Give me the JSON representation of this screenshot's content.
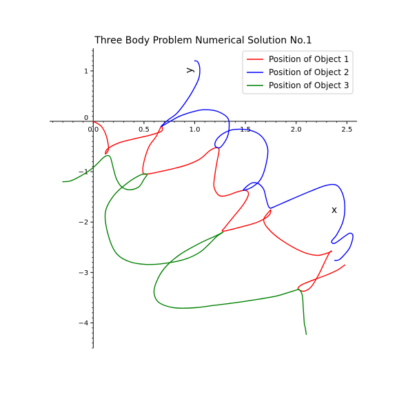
{
  "chart_data": {
    "type": "line",
    "title": "Three Body Problem Numerical Solution No.1",
    "xlabel": "x",
    "ylabel": "y",
    "xlim": [
      -0.43,
      2.6
    ],
    "ylim": [
      -4.5,
      1.45
    ],
    "x_ticks": [
      0.0,
      0.5,
      1.0,
      1.5,
      2.0,
      2.5
    ],
    "x_tick_labels": [
      "0.0",
      "0.5",
      "1.0",
      "1.5",
      "2.0",
      "2.5"
    ],
    "y_ticks": [
      1,
      0,
      -1,
      -2,
      -3,
      -4
    ],
    "y_tick_labels": [
      "1",
      "0",
      "−1",
      "−2",
      "−3",
      "−4"
    ],
    "grid": false,
    "legend_position": "upper right",
    "series": [
      {
        "name": "Position of Object 1",
        "color": "#ff0000",
        "points": [
          [
            0.0,
            0.0
          ],
          [
            0.08,
            -0.1
          ],
          [
            0.13,
            -0.3
          ],
          [
            0.15,
            -0.55
          ],
          [
            0.12,
            -0.65
          ],
          [
            0.14,
            -0.55
          ],
          [
            0.25,
            -0.43
          ],
          [
            0.4,
            -0.35
          ],
          [
            0.55,
            -0.28
          ],
          [
            0.67,
            -0.2
          ],
          [
            0.68,
            -0.12
          ],
          [
            0.67,
            -0.1
          ],
          [
            0.62,
            -0.3
          ],
          [
            0.55,
            -0.5
          ],
          [
            0.5,
            -0.8
          ],
          [
            0.49,
            -1.0
          ],
          [
            0.52,
            -1.05
          ],
          [
            0.7,
            -0.98
          ],
          [
            0.9,
            -0.88
          ],
          [
            1.05,
            -0.75
          ],
          [
            1.15,
            -0.58
          ],
          [
            1.22,
            -0.52
          ],
          [
            1.24,
            -0.58
          ],
          [
            1.22,
            -0.8
          ],
          [
            1.2,
            -1.05
          ],
          [
            1.19,
            -1.3
          ],
          [
            1.24,
            -1.47
          ],
          [
            1.32,
            -1.47
          ],
          [
            1.42,
            -1.4
          ],
          [
            1.5,
            -1.37
          ],
          [
            1.53,
            -1.45
          ],
          [
            1.48,
            -1.65
          ],
          [
            1.38,
            -1.9
          ],
          [
            1.3,
            -2.1
          ],
          [
            1.28,
            -2.18
          ],
          [
            1.45,
            -2.1
          ],
          [
            1.62,
            -2.0
          ],
          [
            1.73,
            -1.87
          ],
          [
            1.75,
            -1.76
          ],
          [
            1.73,
            -1.8
          ],
          [
            1.68,
            -1.95
          ],
          [
            1.72,
            -2.12
          ],
          [
            1.85,
            -2.35
          ],
          [
            2.05,
            -2.58
          ],
          [
            2.2,
            -2.66
          ],
          [
            2.3,
            -2.62
          ],
          [
            2.35,
            -2.58
          ],
          [
            2.33,
            -2.6
          ],
          [
            2.28,
            -2.8
          ],
          [
            2.22,
            -3.05
          ],
          [
            2.15,
            -3.28
          ],
          [
            2.08,
            -3.37
          ],
          [
            2.02,
            -3.33
          ],
          [
            2.05,
            -3.25
          ],
          [
            2.18,
            -3.14
          ],
          [
            2.3,
            -3.05
          ],
          [
            2.4,
            -2.96
          ],
          [
            2.46,
            -2.88
          ],
          [
            2.48,
            -2.85
          ]
        ]
      },
      {
        "name": "Position of Object 2",
        "color": "#0000ff",
        "points": [
          [
            1.0,
            1.2
          ],
          [
            1.03,
            1.18
          ],
          [
            1.05,
            1.05
          ],
          [
            1.04,
            0.85
          ],
          [
            0.98,
            0.6
          ],
          [
            0.9,
            0.35
          ],
          [
            0.82,
            0.15
          ],
          [
            0.74,
            0.03
          ],
          [
            0.67,
            -0.1
          ],
          [
            0.7,
            -0.07
          ],
          [
            0.85,
            0.1
          ],
          [
            1.0,
            0.2
          ],
          [
            1.1,
            0.23
          ],
          [
            1.22,
            0.2
          ],
          [
            1.32,
            0.08
          ],
          [
            1.34,
            -0.08
          ],
          [
            1.32,
            -0.32
          ],
          [
            1.25,
            -0.52
          ],
          [
            1.2,
            -0.48
          ],
          [
            1.22,
            -0.35
          ],
          [
            1.3,
            -0.22
          ],
          [
            1.4,
            -0.16
          ],
          [
            1.55,
            -0.18
          ],
          [
            1.66,
            -0.3
          ],
          [
            1.72,
            -0.55
          ],
          [
            1.7,
            -0.88
          ],
          [
            1.65,
            -1.15
          ],
          [
            1.57,
            -1.3
          ],
          [
            1.48,
            -1.37
          ],
          [
            1.52,
            -1.28
          ],
          [
            1.57,
            -1.22
          ],
          [
            1.63,
            -1.24
          ],
          [
            1.68,
            -1.35
          ],
          [
            1.7,
            -1.5
          ],
          [
            1.72,
            -1.65
          ],
          [
            1.74,
            -1.72
          ],
          [
            1.78,
            -1.7
          ],
          [
            1.95,
            -1.55
          ],
          [
            2.15,
            -1.38
          ],
          [
            2.3,
            -1.27
          ],
          [
            2.4,
            -1.27
          ],
          [
            2.46,
            -1.45
          ],
          [
            2.48,
            -1.72
          ],
          [
            2.46,
            -2.0
          ],
          [
            2.4,
            -2.25
          ],
          [
            2.35,
            -2.38
          ],
          [
            2.38,
            -2.42
          ],
          [
            2.48,
            -2.28
          ],
          [
            2.53,
            -2.22
          ],
          [
            2.56,
            -2.28
          ],
          [
            2.53,
            -2.5
          ],
          [
            2.47,
            -2.66
          ],
          [
            2.42,
            -2.75
          ],
          [
            2.38,
            -2.76
          ]
        ]
      },
      {
        "name": "Position of Object 3",
        "color": "#008000",
        "points": [
          [
            -0.3,
            -1.2
          ],
          [
            -0.22,
            -1.18
          ],
          [
            -0.12,
            -1.08
          ],
          [
            -0.02,
            -0.95
          ],
          [
            0.05,
            -0.82
          ],
          [
            0.1,
            -0.72
          ],
          [
            0.14,
            -0.68
          ],
          [
            0.17,
            -0.72
          ],
          [
            0.2,
            -0.95
          ],
          [
            0.23,
            -1.15
          ],
          [
            0.28,
            -1.3
          ],
          [
            0.36,
            -1.36
          ],
          [
            0.45,
            -1.3
          ],
          [
            0.5,
            -1.15
          ],
          [
            0.53,
            -1.05
          ],
          [
            0.46,
            -1.07
          ],
          [
            0.32,
            -1.25
          ],
          [
            0.2,
            -1.48
          ],
          [
            0.12,
            -1.8
          ],
          [
            0.14,
            -2.2
          ],
          [
            0.22,
            -2.6
          ],
          [
            0.35,
            -2.78
          ],
          [
            0.52,
            -2.84
          ],
          [
            0.7,
            -2.82
          ],
          [
            0.9,
            -2.74
          ],
          [
            1.05,
            -2.6
          ],
          [
            1.15,
            -2.42
          ],
          [
            1.22,
            -2.28
          ],
          [
            1.28,
            -2.2
          ],
          [
            1.2,
            -2.28
          ],
          [
            1.05,
            -2.42
          ],
          [
            0.85,
            -2.65
          ],
          [
            0.7,
            -2.92
          ],
          [
            0.62,
            -3.2
          ],
          [
            0.6,
            -3.42
          ],
          [
            0.65,
            -3.6
          ],
          [
            0.8,
            -3.7
          ],
          [
            1.0,
            -3.7
          ],
          [
            1.2,
            -3.65
          ],
          [
            1.4,
            -3.6
          ],
          [
            1.6,
            -3.54
          ],
          [
            1.8,
            -3.47
          ],
          [
            1.92,
            -3.4
          ],
          [
            2.0,
            -3.35
          ],
          [
            2.03,
            -3.34
          ],
          [
            2.06,
            -3.45
          ],
          [
            2.07,
            -3.7
          ],
          [
            2.08,
            -4.0
          ],
          [
            2.09,
            -4.1
          ],
          [
            2.1,
            -4.23
          ]
        ]
      }
    ]
  }
}
